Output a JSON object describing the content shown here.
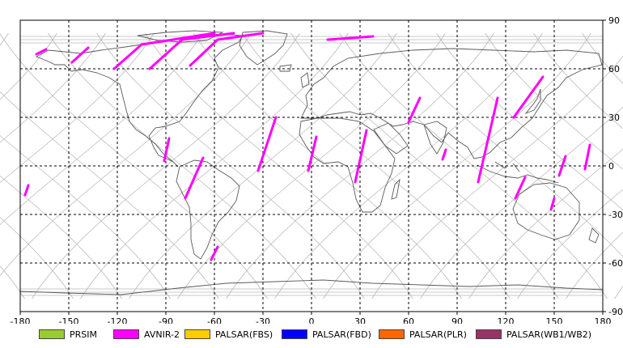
{
  "map": {
    "lon_ticks": [
      "-180",
      "-150",
      "-120",
      "-90",
      "-60",
      "-30",
      "0",
      "30",
      "60",
      "90",
      "120",
      "150",
      "180"
    ],
    "lat_ticks": [
      "90",
      "60",
      "30",
      "0",
      "-30",
      "-60",
      "-90"
    ],
    "grid": true,
    "lon_range": [
      -180,
      180
    ],
    "lat_range": [
      -90,
      90
    ],
    "colors": {
      "coastline": "#5a5a5a",
      "orbit": "#b8b8b8",
      "grid": "#000000",
      "swath": "#ff00ff"
    },
    "swaths": [
      {
        "sensor": "AVNIR-2",
        "path": [
          [
            -164,
            72
          ],
          [
            -170,
            69
          ]
        ]
      },
      {
        "sensor": "AVNIR-2",
        "path": [
          [
            -138,
            73
          ],
          [
            -148,
            64
          ]
        ]
      },
      {
        "sensor": "AVNIR-2",
        "path": [
          [
            -60,
            82
          ],
          [
            -105,
            75
          ],
          [
            -122,
            60
          ]
        ]
      },
      {
        "sensor": "AVNIR-2",
        "path": [
          [
            -48,
            82
          ],
          [
            -80,
            78
          ],
          [
            -100,
            60
          ]
        ]
      },
      {
        "sensor": "AVNIR-2",
        "path": [
          [
            -30,
            82
          ],
          [
            -58,
            78
          ],
          [
            -75,
            62
          ]
        ]
      },
      {
        "sensor": "AVNIR-2",
        "path": [
          [
            38,
            80
          ],
          [
            10,
            78
          ]
        ]
      },
      {
        "sensor": "AVNIR-2",
        "path": [
          [
            -88,
            17
          ],
          [
            -91,
            3
          ]
        ]
      },
      {
        "sensor": "AVNIR-2",
        "path": [
          [
            -67,
            5
          ],
          [
            -78,
            -20
          ]
        ]
      },
      {
        "sensor": "AVNIR-2",
        "path": [
          [
            -58,
            -50
          ],
          [
            -62,
            -58
          ]
        ]
      },
      {
        "sensor": "AVNIR-2",
        "path": [
          [
            -175,
            -12
          ],
          [
            -177,
            -18
          ]
        ]
      },
      {
        "sensor": "AVNIR-2",
        "path": [
          [
            -22,
            30
          ],
          [
            -33,
            -3
          ]
        ]
      },
      {
        "sensor": "AVNIR-2",
        "path": [
          [
            3,
            18
          ],
          [
            -2,
            -3
          ]
        ]
      },
      {
        "sensor": "AVNIR-2",
        "path": [
          [
            34,
            22
          ],
          [
            27,
            -10
          ]
        ]
      },
      {
        "sensor": "AVNIR-2",
        "path": [
          [
            67,
            42
          ],
          [
            60,
            27
          ]
        ]
      },
      {
        "sensor": "AVNIR-2",
        "path": [
          [
            83,
            10
          ],
          [
            81,
            4
          ]
        ]
      },
      {
        "sensor": "AVNIR-2",
        "path": [
          [
            115,
            42
          ],
          [
            103,
            -10
          ]
        ]
      },
      {
        "sensor": "AVNIR-2",
        "path": [
          [
            143,
            55
          ],
          [
            125,
            30
          ]
        ]
      },
      {
        "sensor": "AVNIR-2",
        "path": [
          [
            132,
            -7
          ],
          [
            126,
            -20
          ]
        ]
      },
      {
        "sensor": "AVNIR-2",
        "path": [
          [
            157,
            6
          ],
          [
            153,
            -6
          ]
        ]
      },
      {
        "sensor": "AVNIR-2",
        "path": [
          [
            172,
            13
          ],
          [
            169,
            -2
          ]
        ]
      },
      {
        "sensor": "AVNIR-2",
        "path": [
          [
            150,
            -20
          ],
          [
            148,
            -27
          ]
        ]
      }
    ]
  },
  "legend": [
    {
      "label": "PRSIM",
      "color": "#99cc33"
    },
    {
      "label": "AVNIR-2",
      "color": "#ff00ff"
    },
    {
      "label": "PALSAR(FBS)",
      "color": "#ffcc00"
    },
    {
      "label": "PALSAR(FBD)",
      "color": "#0000ff"
    },
    {
      "label": "PALSAR(PLR)",
      "color": "#ff6600"
    },
    {
      "label": "PALSAR(WB1/WB2)",
      "color": "#993366"
    }
  ]
}
